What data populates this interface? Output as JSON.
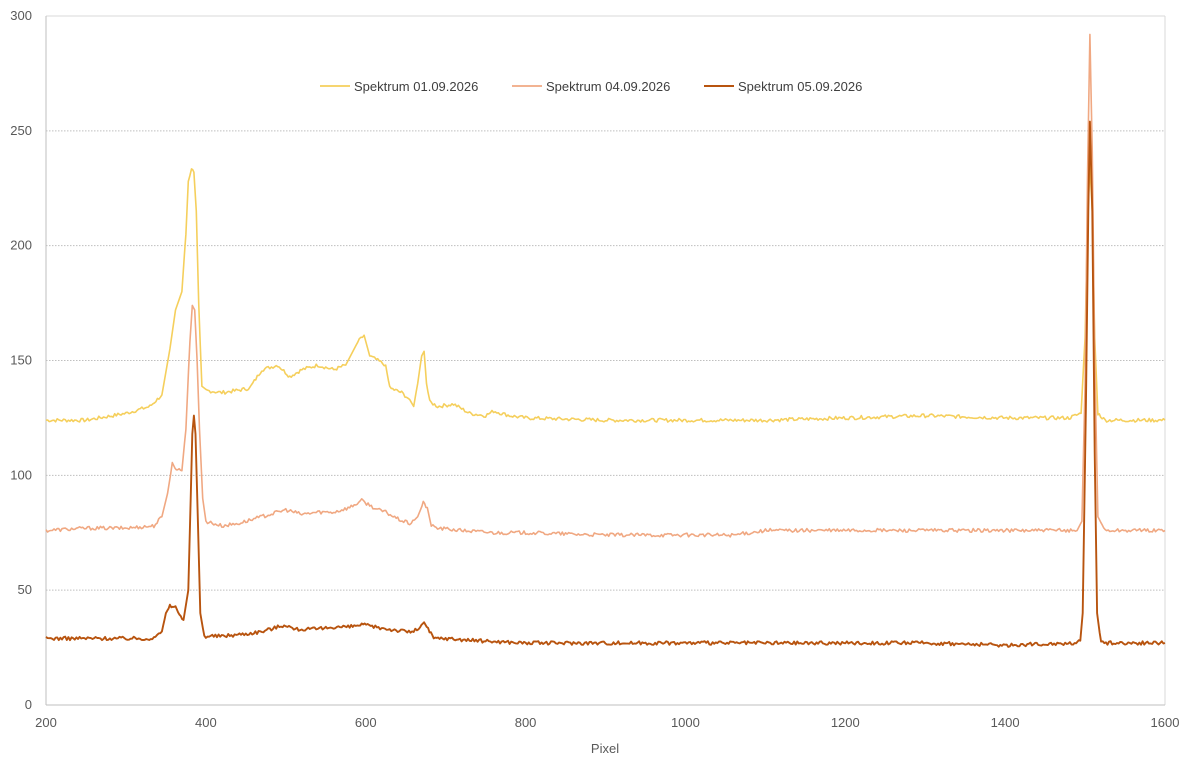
{
  "chart_data": {
    "type": "line",
    "title": "",
    "xlabel": "Pixel",
    "ylabel": "",
    "xlim": [
      200,
      1600
    ],
    "ylim": [
      0,
      300
    ],
    "x_ticks": [
      200,
      400,
      600,
      800,
      1000,
      1200,
      1400,
      1600
    ],
    "y_ticks": [
      0,
      50,
      100,
      150,
      200,
      250,
      300
    ],
    "grid": "horizontal dotted",
    "legend_position": "top",
    "series": [
      {
        "name": "Spektrum 01.09.2026",
        "color": "#F5CF5C",
        "points": [
          [
            200,
            124
          ],
          [
            250,
            124
          ],
          [
            300,
            127
          ],
          [
            330,
            130
          ],
          [
            345,
            135
          ],
          [
            355,
            155
          ],
          [
            362,
            172
          ],
          [
            370,
            180
          ],
          [
            375,
            205
          ],
          [
            378,
            228
          ],
          [
            382,
            233
          ],
          [
            385,
            232
          ],
          [
            388,
            215
          ],
          [
            391,
            175
          ],
          [
            395,
            138
          ],
          [
            400,
            137
          ],
          [
            420,
            136
          ],
          [
            440,
            137
          ],
          [
            455,
            138
          ],
          [
            470,
            146
          ],
          [
            490,
            148
          ],
          [
            505,
            143
          ],
          [
            520,
            146
          ],
          [
            540,
            148
          ],
          [
            560,
            146
          ],
          [
            575,
            148
          ],
          [
            590,
            158
          ],
          [
            598,
            161
          ],
          [
            605,
            152
          ],
          [
            615,
            150
          ],
          [
            625,
            148
          ],
          [
            630,
            138
          ],
          [
            645,
            136
          ],
          [
            655,
            133
          ],
          [
            660,
            130
          ],
          [
            665,
            140
          ],
          [
            670,
            152
          ],
          [
            673,
            154
          ],
          [
            676,
            140
          ],
          [
            680,
            132
          ],
          [
            690,
            130
          ],
          [
            710,
            131
          ],
          [
            730,
            127
          ],
          [
            750,
            126
          ],
          [
            760,
            128
          ],
          [
            780,
            126
          ],
          [
            800,
            125
          ],
          [
            900,
            124
          ],
          [
            1000,
            124
          ],
          [
            1100,
            124
          ],
          [
            1200,
            125
          ],
          [
            1300,
            126
          ],
          [
            1400,
            125
          ],
          [
            1480,
            125
          ],
          [
            1495,
            127
          ],
          [
            1500,
            160
          ],
          [
            1503,
            210
          ],
          [
            1506,
            235
          ],
          [
            1509,
            215
          ],
          [
            1512,
            160
          ],
          [
            1516,
            127
          ],
          [
            1525,
            124
          ],
          [
            1600,
            124
          ]
        ]
      },
      {
        "name": "Spektrum 04.09.2026",
        "color": "#F0A882",
        "points": [
          [
            200,
            76
          ],
          [
            250,
            77
          ],
          [
            300,
            77
          ],
          [
            335,
            78
          ],
          [
            345,
            82
          ],
          [
            352,
            92
          ],
          [
            358,
            105
          ],
          [
            363,
            103
          ],
          [
            370,
            102
          ],
          [
            375,
            120
          ],
          [
            380,
            158
          ],
          [
            383,
            174
          ],
          [
            386,
            172
          ],
          [
            389,
            150
          ],
          [
            392,
            120
          ],
          [
            396,
            90
          ],
          [
            400,
            80
          ],
          [
            420,
            78
          ],
          [
            440,
            79
          ],
          [
            460,
            81
          ],
          [
            480,
            83
          ],
          [
            500,
            85
          ],
          [
            520,
            83
          ],
          [
            540,
            84
          ],
          [
            560,
            84
          ],
          [
            580,
            86
          ],
          [
            595,
            89
          ],
          [
            605,
            87
          ],
          [
            615,
            85
          ],
          [
            625,
            84
          ],
          [
            640,
            81
          ],
          [
            655,
            79
          ],
          [
            665,
            82
          ],
          [
            672,
            88
          ],
          [
            677,
            86
          ],
          [
            682,
            78
          ],
          [
            690,
            77
          ],
          [
            720,
            76
          ],
          [
            760,
            75
          ],
          [
            800,
            75
          ],
          [
            900,
            74
          ],
          [
            1000,
            74
          ],
          [
            1060,
            74
          ],
          [
            1100,
            76
          ],
          [
            1200,
            76
          ],
          [
            1300,
            76
          ],
          [
            1400,
            76
          ],
          [
            1490,
            76
          ],
          [
            1496,
            80
          ],
          [
            1500,
            140
          ],
          [
            1503,
            230
          ],
          [
            1506,
            292
          ],
          [
            1509,
            240
          ],
          [
            1512,
            150
          ],
          [
            1516,
            82
          ],
          [
            1525,
            76
          ],
          [
            1600,
            76
          ]
        ]
      },
      {
        "name": "Spektrum 05.09.2026",
        "color": "#B8540F",
        "points": [
          [
            200,
            29
          ],
          [
            250,
            29
          ],
          [
            300,
            29
          ],
          [
            335,
            29
          ],
          [
            345,
            32
          ],
          [
            350,
            40
          ],
          [
            355,
            43
          ],
          [
            362,
            43
          ],
          [
            367,
            39
          ],
          [
            372,
            37
          ],
          [
            378,
            50
          ],
          [
            381,
            90
          ],
          [
            383,
            118
          ],
          [
            385,
            126
          ],
          [
            387,
            118
          ],
          [
            390,
            80
          ],
          [
            393,
            40
          ],
          [
            398,
            30
          ],
          [
            420,
            30
          ],
          [
            450,
            31
          ],
          [
            470,
            32
          ],
          [
            490,
            34
          ],
          [
            500,
            35
          ],
          [
            510,
            33
          ],
          [
            540,
            33
          ],
          [
            560,
            34
          ],
          [
            580,
            34
          ],
          [
            595,
            35
          ],
          [
            610,
            34
          ],
          [
            630,
            33
          ],
          [
            650,
            32
          ],
          [
            660,
            32
          ],
          [
            668,
            34
          ],
          [
            673,
            36
          ],
          [
            678,
            33
          ],
          [
            685,
            29
          ],
          [
            700,
            29
          ],
          [
            740,
            28
          ],
          [
            800,
            27
          ],
          [
            900,
            27
          ],
          [
            1000,
            27
          ],
          [
            1100,
            27
          ],
          [
            1200,
            27
          ],
          [
            1300,
            27
          ],
          [
            1400,
            26
          ],
          [
            1485,
            27
          ],
          [
            1494,
            28
          ],
          [
            1497,
            40
          ],
          [
            1501,
            130
          ],
          [
            1504,
            215
          ],
          [
            1506,
            254
          ],
          [
            1509,
            215
          ],
          [
            1512,
            110
          ],
          [
            1515,
            40
          ],
          [
            1520,
            27
          ],
          [
            1600,
            27
          ]
        ]
      }
    ]
  }
}
